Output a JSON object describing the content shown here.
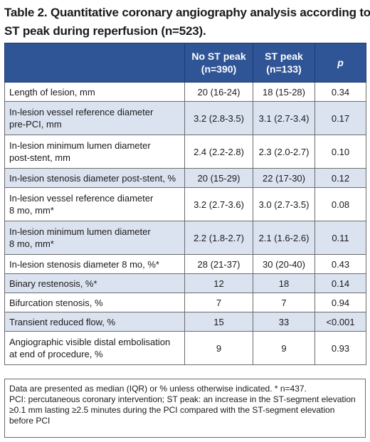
{
  "title": {
    "line1": "Table 2. Quantitative coronary angiography analysis according to",
    "line2": "ST peak during reperfusion (n=523)."
  },
  "table": {
    "headers": {
      "label": "",
      "no_st_peak": "No ST peak",
      "no_st_peak_n": "(n=390)",
      "st_peak": "ST peak",
      "st_peak_n": "(n=133)",
      "p": "p"
    },
    "rows": [
      {
        "label1": "Length of lesion, mm",
        "label2": "",
        "no_st": "20 (16-24)",
        "st": "18 (15-28)",
        "p": "0.34"
      },
      {
        "label1": "In-lesion vessel reference diameter",
        "label2": "pre-PCI, mm",
        "no_st": "3.2 (2.8-3.5)",
        "st": "3.1 (2.7-3.4)",
        "p": "0.17"
      },
      {
        "label1": "In-lesion minimum lumen diameter",
        "label2": "post-stent, mm",
        "no_st": "2.4 (2.2-2.8)",
        "st": "2.3 (2.0-2.7)",
        "p": "0.10"
      },
      {
        "label1": "In-lesion stenosis diameter post-stent, %",
        "label2": "",
        "no_st": "20 (15-29)",
        "st": "22 (17-30)",
        "p": "0.12"
      },
      {
        "label1": "In-lesion vessel reference diameter",
        "label2": "8 mo, mm*",
        "no_st": "3.2 (2.7-3.6)",
        "st": "3.0 (2.7-3.5)",
        "p": "0.08"
      },
      {
        "label1": "In-lesion minimum lumen diameter",
        "label2": "8 mo, mm*",
        "no_st": "2.2 (1.8-2.7)",
        "st": "2.1 (1.6-2.6)",
        "p": "0.11"
      },
      {
        "label1": "In-lesion stenosis diameter 8 mo, %*",
        "label2": "",
        "no_st": "28 (21-37)",
        "st": "30 (20-40)",
        "p": "0.43"
      },
      {
        "label1": "Binary restenosis, %*",
        "label2": "",
        "no_st": "12",
        "st": "18",
        "p": "0.14"
      },
      {
        "label1": "Bifurcation stenosis, %",
        "label2": "",
        "no_st": "7",
        "st": "7",
        "p": "0.94"
      },
      {
        "label1": "Transient reduced flow, %",
        "label2": "",
        "no_st": "15",
        "st": "33",
        "p": "<0.001"
      },
      {
        "label1": "Angiographic visible distal embolisation",
        "label2": "at end of procedure, %",
        "no_st": "9",
        "st": "9",
        "p": "0.93"
      }
    ]
  },
  "footnote": {
    "line1": "Data are presented as median (IQR) or % unless otherwise indicated. * n=437.",
    "line2": "PCI: percutaneous coronary intervention; ST peak: an increase in the ST-segment elevation",
    "line3": "≥0.1 mm lasting ≥2.5 minutes during the PCI compared with the ST-segment elevation",
    "line4": "before PCI"
  },
  "colors": {
    "header_bg": "#2f5597",
    "shade_bg": "#dbe3f1"
  }
}
